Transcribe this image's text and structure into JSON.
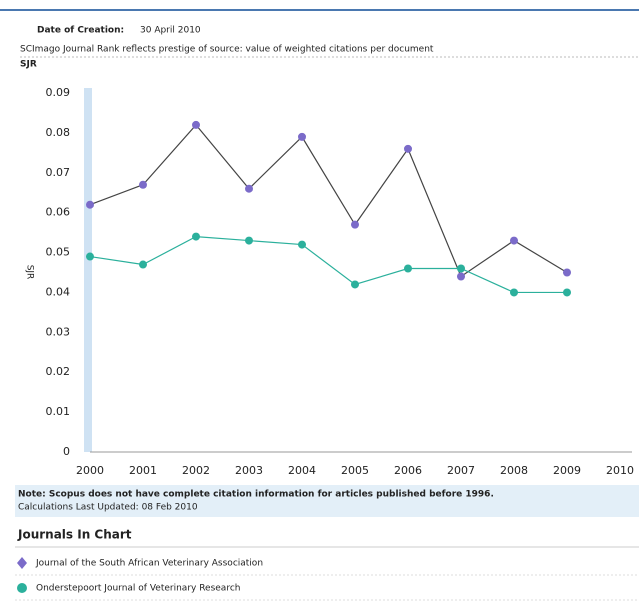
{
  "header": {
    "date_label": "Date of Creation:",
    "date": "30 April 2010",
    "description": "SCImago Journal Rank reflects prestige of source: value of weighted citations per document",
    "axis_caption": "SJR"
  },
  "chart_data": {
    "type": "line",
    "ylabel": "SJR",
    "x": [
      2000,
      2001,
      2002,
      2003,
      2004,
      2005,
      2006,
      2007,
      2008,
      2009
    ],
    "xlim": [
      2000,
      2010
    ],
    "xticks": [
      2000,
      2001,
      2002,
      2003,
      2004,
      2005,
      2006,
      2007,
      2008,
      2009,
      2010
    ],
    "ylim": [
      0,
      0.09
    ],
    "yticks": [
      0,
      0.01,
      0.02,
      0.03,
      0.04,
      0.05,
      0.06,
      0.07,
      0.08,
      0.09
    ],
    "grid": false,
    "series": [
      {
        "name": "Journal of the South African Veterinary Association",
        "color": "#7b6bc9",
        "line_color": "#444444",
        "values": [
          0.062,
          0.067,
          0.082,
          0.066,
          0.079,
          0.057,
          0.076,
          0.044,
          0.053,
          0.045
        ]
      },
      {
        "name": "Onderstepoort Journal of Veterinary Research",
        "color": "#2bb09c",
        "line_color": "#2bb09c",
        "values": [
          0.049,
          0.047,
          0.054,
          0.053,
          0.052,
          0.042,
          0.046,
          0.046,
          0.04,
          0.04
        ]
      }
    ]
  },
  "footer": {
    "note": "Note: Scopus does not have complete citation information for articles published before 1996.",
    "updated": "Calculations Last Updated: 08 Feb 2010",
    "legend_title": "Journals In Chart"
  }
}
